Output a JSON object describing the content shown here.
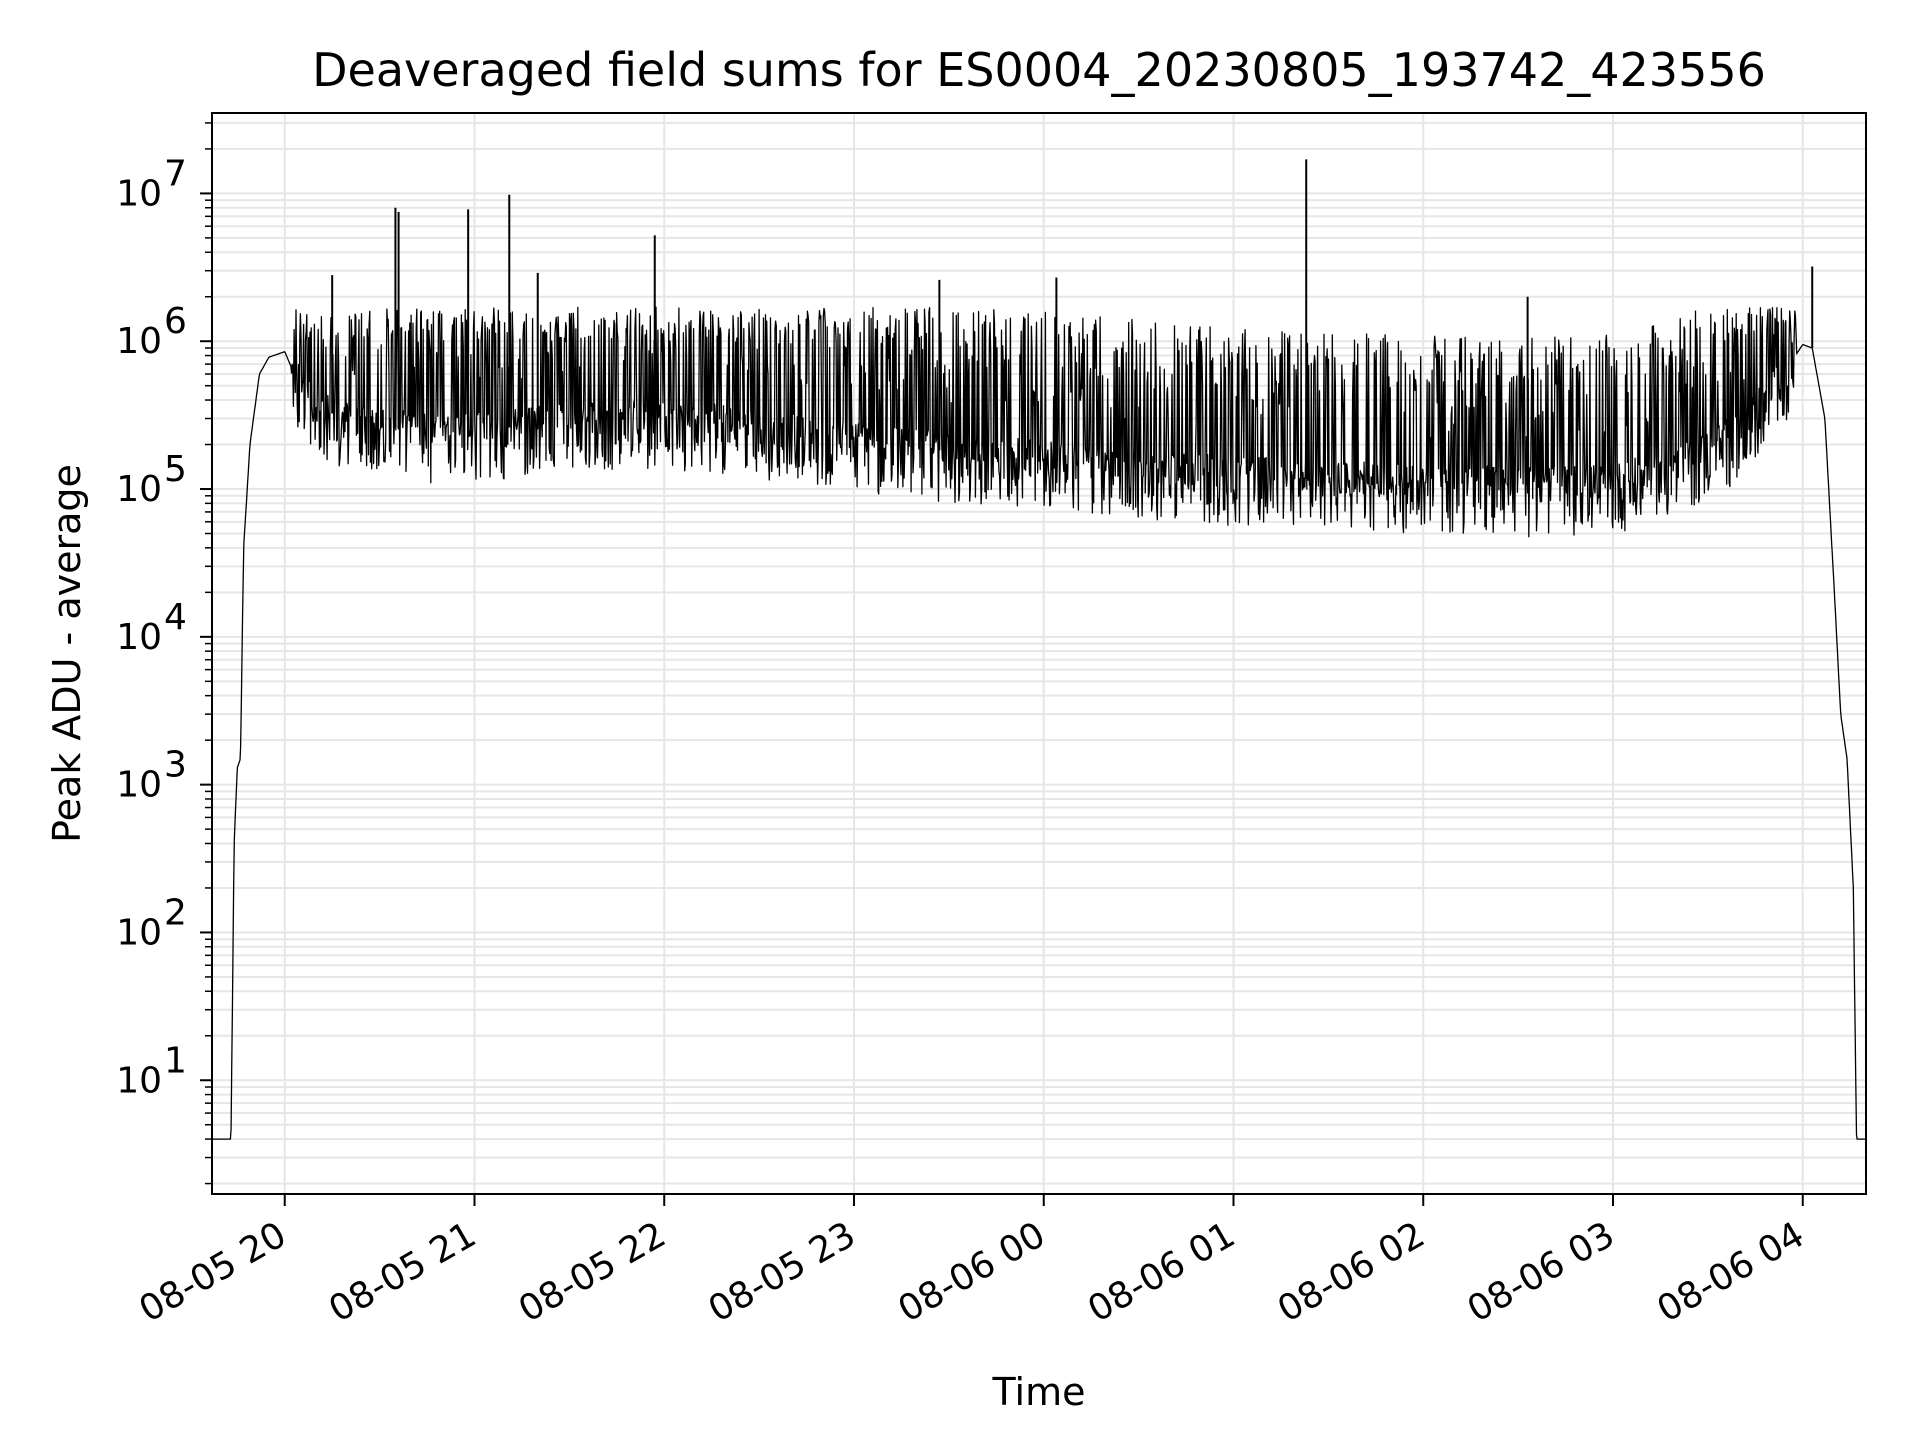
{
  "chart_data": {
    "type": "line",
    "title": "Deaveraged field sums for ES0004_20230805_193742_423556",
    "xlabel": "Time",
    "ylabel": "Peak ADU - average",
    "yscale": "log",
    "grid": true,
    "x_range": [
      "2023-08-05 19:37",
      "2023-08-06 04:20"
    ],
    "ylim": [
      1.7,
      35000000
    ],
    "x_ticks": [
      {
        "value": "2023-08-05 20:00",
        "label": "08-05 20"
      },
      {
        "value": "2023-08-05 21:00",
        "label": "08-05 21"
      },
      {
        "value": "2023-08-05 22:00",
        "label": "08-05 22"
      },
      {
        "value": "2023-08-05 23:00",
        "label": "08-05 23"
      },
      {
        "value": "2023-08-06 00:00",
        "label": "08-06 00"
      },
      {
        "value": "2023-08-06 01:00",
        "label": "08-06 01"
      },
      {
        "value": "2023-08-06 02:00",
        "label": "08-06 02"
      },
      {
        "value": "2023-08-06 03:00",
        "label": "08-06 03"
      },
      {
        "value": "2023-08-06 04:00",
        "label": "08-06 04"
      }
    ],
    "y_ticks": [
      {
        "value": 10,
        "base": "10",
        "exp": "1"
      },
      {
        "value": 100,
        "base": "10",
        "exp": "2"
      },
      {
        "value": 1000,
        "base": "10",
        "exp": "3"
      },
      {
        "value": 10000,
        "base": "10",
        "exp": "4"
      },
      {
        "value": 100000,
        "base": "10",
        "exp": "5"
      },
      {
        "value": 1000000,
        "base": "10",
        "exp": "6"
      },
      {
        "value": 10000000,
        "base": "10",
        "exp": "7"
      }
    ],
    "series": [
      {
        "color": "#000000",
        "points": [
          [
            "2023-08-05 19:37",
            4
          ],
          [
            "2023-08-05 19:43",
            4
          ],
          [
            "2023-08-05 19:44",
            400
          ],
          [
            "2023-08-05 19:45",
            1300
          ],
          [
            "2023-08-05 19:46",
            1500
          ],
          [
            "2023-08-05 19:47",
            40000
          ],
          [
            "2023-08-05 19:49",
            200000
          ],
          [
            "2023-08-05 19:52",
            600000
          ],
          [
            "2023-08-05 19:55",
            780000
          ],
          [
            "2023-08-05 20:00",
            850000
          ],
          [
            "2023-08-05 20:03",
            600000
          ],
          [
            "2023-08-05 20:06",
            450000
          ],
          [
            "2023-08-05 20:10",
            350000
          ],
          [
            "2023-08-05 20:20",
            300000
          ],
          [
            "2023-08-05 20:30",
            270000
          ],
          [
            "2023-08-05 20:40",
            250000
          ],
          [
            "2023-08-05 20:50",
            240000
          ],
          [
            "2023-08-05 21:00",
            250000
          ],
          [
            "2023-08-05 21:30",
            280000
          ],
          [
            "2023-08-05 22:00",
            300000
          ],
          [
            "2023-08-05 22:30",
            260000
          ],
          [
            "2023-08-05 23:00",
            210000
          ],
          [
            "2023-08-05 23:30",
            180000
          ],
          [
            "2023-08-06 00:00",
            160000
          ],
          [
            "2023-08-06 00:30",
            140000
          ],
          [
            "2023-08-06 01:00",
            125000
          ],
          [
            "2023-08-06 01:30",
            115000
          ],
          [
            "2023-08-06 02:00",
            110000
          ],
          [
            "2023-08-06 02:30",
            105000
          ],
          [
            "2023-08-06 03:00",
            110000
          ],
          [
            "2023-08-06 03:20",
            140000
          ],
          [
            "2023-08-06 03:40",
            250000
          ],
          [
            "2023-08-06 03:50",
            450000
          ],
          [
            "2023-08-06 04:00",
            950000
          ],
          [
            "2023-08-06 04:03",
            900000
          ],
          [
            "2023-08-06 04:07",
            300000
          ],
          [
            "2023-08-06 04:10",
            20000
          ],
          [
            "2023-08-06 04:12",
            3000
          ],
          [
            "2023-08-06 04:14",
            1500
          ],
          [
            "2023-08-06 04:16",
            200
          ],
          [
            "2023-08-06 04:17",
            4
          ],
          [
            "2023-08-06 04:20",
            4
          ]
        ],
        "spikes": [
          [
            "2023-08-05 20:15",
            2800000
          ],
          [
            "2023-08-05 20:35",
            8000000
          ],
          [
            "2023-08-05 20:36",
            7500000
          ],
          [
            "2023-08-05 20:58",
            7800000
          ],
          [
            "2023-08-05 21:11",
            9800000
          ],
          [
            "2023-08-05 21:20",
            2900000
          ],
          [
            "2023-08-05 21:57",
            5200000
          ],
          [
            "2023-08-05 23:27",
            2600000
          ],
          [
            "2023-08-06 00:04",
            2700000
          ],
          [
            "2023-08-06 01:23",
            17000000
          ],
          [
            "2023-08-06 02:33",
            2000000
          ],
          [
            "2023-08-06 04:03",
            3200000
          ]
        ]
      }
    ]
  }
}
